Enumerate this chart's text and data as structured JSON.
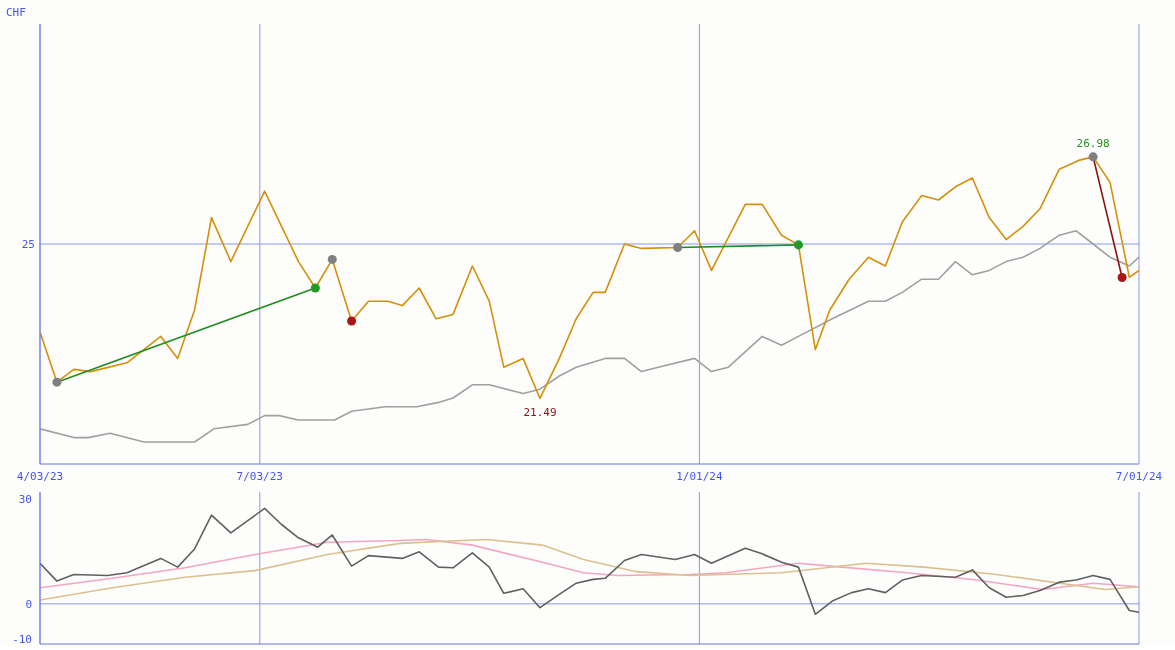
{
  "chart_data": [
    {
      "type": "line",
      "ylabel": "CHF",
      "xlim": [
        "2023-04-03",
        "2024-07-01"
      ],
      "xticks": [
        {
          "value": "2023-04-03",
          "label": "4/03/23"
        },
        {
          "value": "2023-07-03",
          "label": "7/03/23"
        },
        {
          "value": "2024-01-01",
          "label": "1/01/24"
        },
        {
          "value": "2024-07-01",
          "label": "7/01/24"
        }
      ],
      "ylim": [
        20,
        30
      ],
      "grid": "x",
      "marker": "none",
      "line_style": "solid",
      "ref_lines": [
        {
          "axis": "y",
          "value": 25,
          "label": "25",
          "color": "#8899ee"
        }
      ],
      "series": [
        {
          "color": "#a0a0a0",
          "x": [
            "2023-04-03",
            "2023-04-17",
            "2023-04-23",
            "2023-05-02",
            "2023-05-16",
            "2023-05-30",
            "2023-06-06",
            "2023-06-14",
            "2023-06-28",
            "2023-07-05",
            "2023-07-11",
            "2023-07-19",
            "2023-08-03",
            "2023-08-10",
            "2023-08-24",
            "2023-09-06",
            "2023-09-15",
            "2023-09-21",
            "2023-09-29",
            "2023-10-06",
            "2023-10-20",
            "2023-10-27",
            "2023-11-04",
            "2023-11-11",
            "2023-11-23",
            "2023-12-01",
            "2023-12-08",
            "2023-12-15",
            "2023-12-30",
            "2024-01-06",
            "2024-01-13",
            "2024-01-27",
            "2024-02-04",
            "2024-02-11",
            "2024-02-25",
            "2024-03-11",
            "2024-03-18",
            "2024-03-25",
            "2024-04-02",
            "2024-04-09",
            "2024-04-16",
            "2024-04-23",
            "2024-04-30",
            "2024-05-07",
            "2024-05-14",
            "2024-05-21",
            "2024-05-29",
            "2024-06-05",
            "2024-06-12",
            "2024-06-19",
            "2024-06-27",
            "2024-07-01"
          ],
          "values": [
            20.8,
            20.6,
            20.6,
            20.7,
            20.5,
            20.5,
            20.5,
            20.8,
            20.9,
            21.1,
            21.1,
            21.0,
            21.0,
            21.2,
            21.3,
            21.3,
            21.4,
            21.5,
            21.8,
            21.8,
            21.6,
            21.7,
            22.0,
            22.2,
            22.4,
            22.4,
            22.1,
            22.2,
            22.4,
            22.1,
            22.2,
            22.9,
            22.7,
            22.9,
            23.3,
            23.7,
            23.7,
            23.9,
            24.2,
            24.2,
            24.6,
            24.3,
            24.4,
            24.6,
            24.7,
            24.9,
            25.2,
            25.3,
            25.0,
            24.7,
            24.5,
            24.7
          ]
        },
        {
          "color": "#d4900a",
          "x": [
            "2023-04-03",
            "2023-04-10",
            "2023-04-17",
            "2023-04-24",
            "2023-05-09",
            "2023-05-23",
            "2023-05-30",
            "2023-06-06",
            "2023-06-13",
            "2023-06-21",
            "2023-07-05",
            "2023-07-19",
            "2023-07-26",
            "2023-08-02",
            "2023-08-10",
            "2023-08-17",
            "2023-08-25",
            "2023-08-31",
            "2023-09-07",
            "2023-09-14",
            "2023-09-21",
            "2023-09-29",
            "2023-10-06",
            "2023-10-12",
            "2023-10-20",
            "2023-10-27",
            "2023-11-04",
            "2023-11-11",
            "2023-11-18",
            "2023-11-23",
            "2023-12-01",
            "2023-12-08",
            "2023-12-23",
            "2023-12-30",
            "2024-01-06",
            "2024-01-20",
            "2024-01-27",
            "2024-02-04",
            "2024-02-11",
            "2024-02-18",
            "2024-02-24",
            "2024-03-03",
            "2024-03-11",
            "2024-03-18",
            "2024-03-25",
            "2024-04-02",
            "2024-04-09",
            "2024-04-16",
            "2024-04-23",
            "2024-04-30",
            "2024-05-07",
            "2024-05-14",
            "2024-05-21",
            "2024-05-29",
            "2024-06-06",
            "2024-06-12",
            "2024-06-19",
            "2024-06-27",
            "2024-07-01"
          ],
          "values": [
            23.0,
            21.86,
            22.15,
            22.1,
            22.3,
            22.9,
            22.4,
            23.5,
            25.6,
            24.6,
            26.2,
            24.6,
            24.0,
            24.65,
            23.25,
            23.7,
            23.7,
            23.6,
            24.0,
            23.3,
            23.4,
            24.5,
            23.7,
            22.2,
            22.4,
            21.49,
            22.4,
            23.3,
            23.9,
            23.9,
            25.0,
            24.9,
            24.92,
            25.3,
            24.4,
            25.9,
            25.9,
            25.2,
            24.98,
            22.6,
            23.5,
            24.2,
            24.7,
            24.5,
            25.5,
            26.1,
            26.0,
            26.3,
            26.5,
            25.6,
            25.1,
            25.4,
            25.8,
            26.7,
            26.9,
            26.98,
            26.4,
            24.24,
            24.4
          ],
          "value_labels": [
            null,
            null,
            null,
            null,
            null,
            null,
            null,
            null,
            null,
            null,
            null,
            null,
            null,
            null,
            null,
            null,
            null,
            null,
            null,
            null,
            null,
            null,
            null,
            null,
            null,
            "21.49",
            null,
            null,
            null,
            null,
            null,
            null,
            null,
            null,
            null,
            null,
            null,
            null,
            null,
            null,
            null,
            null,
            null,
            null,
            null,
            null,
            null,
            null,
            null,
            null,
            null,
            null,
            null,
            null,
            null,
            "26.98",
            null,
            null,
            null
          ]
        },
        {
          "type": "line",
          "color": "#228b22",
          "x": [
            "2023-04-10",
            "2023-07-26"
          ],
          "values": [
            21.86,
            24.0
          ]
        },
        {
          "type": "line",
          "color": "#228b22",
          "x": [
            "2023-12-23",
            "2024-02-11"
          ],
          "values": [
            24.92,
            24.98
          ]
        },
        {
          "type": "line",
          "color": "#8b1010",
          "x": [
            "2024-06-12",
            "2024-06-24"
          ],
          "values": [
            26.98,
            24.24
          ]
        },
        {
          "type": "scatter",
          "marker": "circle",
          "color": "#808080",
          "x": [
            "2023-04-10",
            "2023-08-02",
            "2023-12-23",
            "2024-06-12"
          ],
          "values": [
            21.86,
            24.65,
            24.92,
            26.98
          ]
        },
        {
          "type": "scatter",
          "marker": "circle",
          "color": "#229922",
          "x": [
            "2023-07-26",
            "2024-02-11"
          ],
          "values": [
            24.0,
            24.98
          ]
        },
        {
          "type": "scatter",
          "marker": "circle",
          "color": "#aa1515",
          "x": [
            "2023-08-10",
            "2024-06-24"
          ],
          "values": [
            23.25,
            24.24
          ]
        }
      ]
    },
    {
      "type": "line",
      "xlim": [
        "2023-04-03",
        "2024-07-01"
      ],
      "xticks": [
        {
          "value": "2023-07-03",
          "label": null
        },
        {
          "value": "2024-01-01",
          "label": null
        }
      ],
      "ylim": [
        -11.5,
        32
      ],
      "yticks": [
        30,
        0,
        -10
      ],
      "grid": "x",
      "tick_labels": "y",
      "marker": "none",
      "line_style": "solid",
      "ref_lines": [
        {
          "axis": "y",
          "value": 0,
          "color": "#8899ee"
        }
      ],
      "series": [
        {
          "color": "#f4a6c0",
          "x": [
            "2023-04-03",
            "2023-05-03",
            "2023-06-02",
            "2023-07-01",
            "2023-07-31",
            "2023-08-30",
            "2023-09-10",
            "2023-09-29",
            "2023-10-28",
            "2023-11-14",
            "2023-11-28",
            "2023-12-28",
            "2024-01-12",
            "2024-02-11",
            "2024-02-29",
            "2024-03-27",
            "2024-04-25",
            "2024-05-22",
            "2024-06-12",
            "2024-07-01"
          ],
          "values": [
            4.6,
            7.3,
            10.3,
            14.1,
            17.6,
            18.1,
            18.4,
            16.8,
            11.9,
            8.9,
            8.1,
            8.4,
            8.9,
            11.6,
            10.5,
            8.9,
            6.8,
            4.1,
            5.9,
            4.9
          ]
        },
        {
          "color": "#dcc090",
          "x": [
            "2023-04-03",
            "2023-05-03",
            "2023-06-02",
            "2023-07-01",
            "2023-07-31",
            "2023-08-30",
            "2023-09-14",
            "2023-10-05",
            "2023-10-28",
            "2023-11-14",
            "2023-12-06",
            "2023-12-28",
            "2024-02-04",
            "2024-03-10",
            "2024-04-03",
            "2024-05-03",
            "2024-06-17",
            "2024-07-01"
          ],
          "values": [
            1.1,
            4.6,
            7.6,
            9.5,
            14.1,
            17.3,
            17.8,
            18.4,
            16.8,
            12.7,
            9.2,
            8.1,
            8.9,
            11.6,
            10.5,
            8.4,
            4.1,
            4.9
          ]
        },
        {
          "color": "#606060",
          "x": [
            "2023-04-03",
            "2023-04-10",
            "2023-04-17",
            "2023-05-01",
            "2023-05-09",
            "2023-05-23",
            "2023-05-30",
            "2023-06-06",
            "2023-06-13",
            "2023-06-21",
            "2023-06-28",
            "2023-07-05",
            "2023-07-12",
            "2023-07-19",
            "2023-07-27",
            "2023-08-02",
            "2023-08-10",
            "2023-08-17",
            "2023-08-31",
            "2023-09-07",
            "2023-09-15",
            "2023-09-21",
            "2023-09-29",
            "2023-10-06",
            "2023-10-12",
            "2023-10-20",
            "2023-10-27",
            "2023-11-04",
            "2023-11-11",
            "2023-11-18",
            "2023-11-23",
            "2023-12-01",
            "2023-12-08",
            "2023-12-22",
            "2023-12-30",
            "2024-01-06",
            "2024-01-20",
            "2024-01-27",
            "2024-02-04",
            "2024-02-11",
            "2024-02-18",
            "2024-02-25",
            "2024-03-04",
            "2024-03-11",
            "2024-03-18",
            "2024-03-25",
            "2024-04-02",
            "2024-04-16",
            "2024-04-23",
            "2024-04-30",
            "2024-05-07",
            "2024-05-14",
            "2024-05-21",
            "2024-05-29",
            "2024-06-05",
            "2024-06-12",
            "2024-06-19",
            "2024-06-27",
            "2024-07-01"
          ],
          "values": [
            11.6,
            6.5,
            8.4,
            8.1,
            8.9,
            13.0,
            10.5,
            15.7,
            25.4,
            20.3,
            23.8,
            27.3,
            22.7,
            18.9,
            16.2,
            19.7,
            10.8,
            13.8,
            13.0,
            14.9,
            10.5,
            10.3,
            14.6,
            10.5,
            3.0,
            4.3,
            -1.1,
            2.7,
            5.9,
            7.0,
            7.3,
            12.4,
            14.1,
            12.7,
            14.1,
            11.6,
            15.9,
            14.3,
            11.9,
            10.5,
            -3.0,
            0.8,
            3.2,
            4.3,
            3.2,
            6.8,
            8.1,
            7.6,
            9.7,
            4.6,
            1.9,
            2.4,
            3.8,
            6.2,
            6.8,
            8.1,
            7.0,
            -1.9,
            -2.4
          ]
        }
      ]
    }
  ]
}
